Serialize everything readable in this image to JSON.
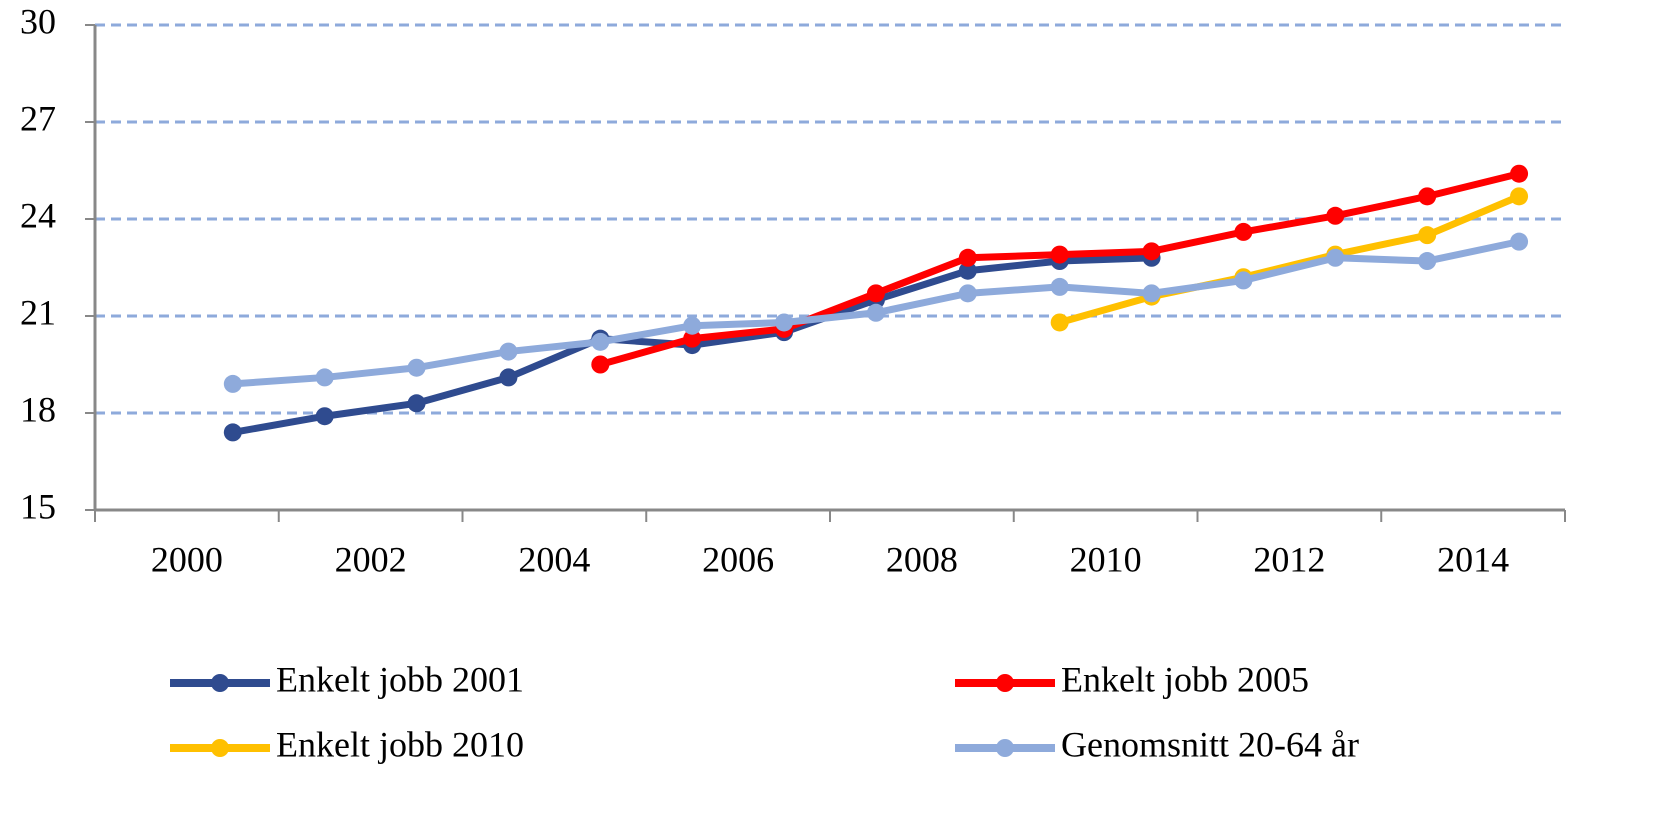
{
  "chart_data": {
    "type": "line",
    "categories": [
      "2000",
      null,
      "2002",
      null,
      "2004",
      null,
      "2006",
      null,
      "2008",
      null,
      "2010",
      null,
      "2012",
      null,
      "2014",
      null
    ],
    "series": [
      {
        "name": "Enkelt jobb 2001",
        "color": "#2f4b8f",
        "values": [
          null,
          17.4,
          17.9,
          18.3,
          19.1,
          20.3,
          20.1,
          20.5,
          21.5,
          22.4,
          22.7,
          22.8,
          null,
          null,
          null,
          null
        ]
      },
      {
        "name": "Enkelt jobb 2005",
        "color": "#ff0000",
        "values": [
          null,
          null,
          null,
          null,
          null,
          19.5,
          20.3,
          20.6,
          21.7,
          22.8,
          22.9,
          23.0,
          23.6,
          24.1,
          24.7,
          25.4
        ]
      },
      {
        "name": "Enkelt jobb 2010",
        "color": "#ffc000",
        "values": [
          null,
          null,
          null,
          null,
          null,
          null,
          null,
          null,
          null,
          null,
          20.8,
          21.6,
          22.2,
          22.9,
          23.5,
          24.7
        ]
      },
      {
        "name": "Genomsnitt 20-64 år",
        "color": "#8eaadb",
        "values": [
          null,
          18.9,
          19.1,
          19.4,
          19.9,
          20.2,
          20.7,
          20.8,
          21.1,
          21.7,
          21.9,
          21.7,
          22.1,
          22.8,
          22.7,
          23.3
        ]
      }
    ],
    "ylim": [
      15,
      30
    ],
    "yticks": [
      15,
      18,
      21,
      24,
      27,
      30
    ],
    "grid": true,
    "legend": "bottom"
  }
}
